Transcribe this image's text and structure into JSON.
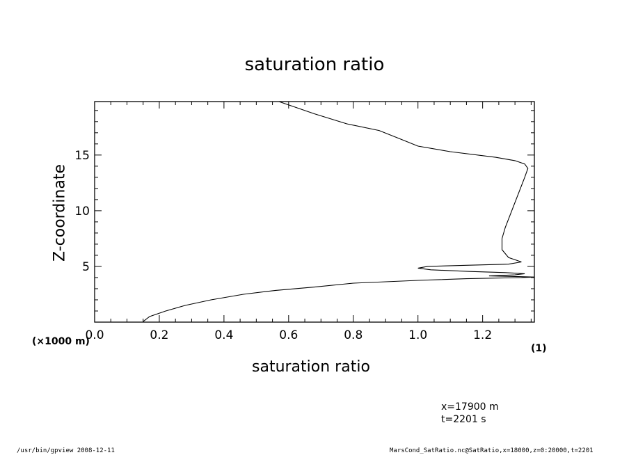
{
  "chart_data": {
    "type": "line",
    "title": "saturation ratio",
    "xlabel": "saturation ratio",
    "ylabel": "Z-coordinate",
    "x_unit": "(1)",
    "y_unit": "(×1000 m)",
    "xlim": [
      0.0,
      1.36
    ],
    "ylim": [
      0.0,
      19.8
    ],
    "xticks": [
      "0.0",
      "0.2",
      "0.4",
      "0.6",
      "0.8",
      "1.0",
      "1.2"
    ],
    "yticks": [
      "5",
      "10",
      "15"
    ],
    "grid": false,
    "series": [
      {
        "points": [
          [
            0.15,
            0.05
          ],
          [
            0.17,
            0.5
          ],
          [
            0.22,
            1.0
          ],
          [
            0.28,
            1.5
          ],
          [
            0.36,
            2.0
          ],
          [
            0.46,
            2.5
          ],
          [
            0.56,
            2.85
          ],
          [
            0.68,
            3.15
          ],
          [
            0.8,
            3.5
          ],
          [
            1.0,
            3.75
          ],
          [
            1.15,
            3.9
          ],
          [
            1.32,
            4.0
          ],
          [
            1.36,
            4.05
          ],
          [
            1.3,
            4.1
          ],
          [
            1.22,
            4.15
          ],
          [
            1.3,
            4.25
          ],
          [
            1.33,
            4.35
          ],
          [
            1.27,
            4.45
          ],
          [
            1.16,
            4.55
          ],
          [
            1.04,
            4.7
          ],
          [
            1.0,
            4.85
          ],
          [
            1.03,
            5.0
          ],
          [
            1.15,
            5.1
          ],
          [
            1.28,
            5.2
          ],
          [
            1.32,
            5.4
          ],
          [
            1.28,
            5.8
          ],
          [
            1.26,
            6.5
          ],
          [
            1.26,
            7.5
          ],
          [
            1.27,
            8.5
          ],
          [
            1.29,
            10.0
          ],
          [
            1.31,
            11.5
          ],
          [
            1.33,
            13.0
          ],
          [
            1.34,
            13.8
          ],
          [
            1.33,
            14.2
          ],
          [
            1.3,
            14.5
          ],
          [
            1.24,
            14.8
          ],
          [
            1.1,
            15.3
          ],
          [
            1.0,
            15.8
          ],
          [
            0.94,
            16.5
          ],
          [
            0.88,
            17.2
          ],
          [
            0.78,
            17.8
          ],
          [
            0.68,
            18.7
          ],
          [
            0.62,
            19.3
          ],
          [
            0.57,
            19.8
          ]
        ]
      }
    ]
  },
  "info": {
    "x_position": "x=17900  m",
    "time": "t=2201  s"
  },
  "footer": {
    "program": "/usr/bin/gpview   2008-12-11",
    "source": "MarsCond_SatRatio.nc@SatRatio,x=18000,z=0:20000,t=2201"
  }
}
